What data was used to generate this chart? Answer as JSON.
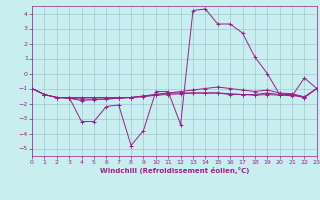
{
  "title": "",
  "xlabel": "Windchill (Refroidissement éolien,°C)",
  "ylabel": "",
  "bg_color": "#c8eef0",
  "line_color": "#9b1f8a",
  "grid_color": "#a0c8d0",
  "xlim": [
    0,
    23
  ],
  "ylim": [
    -5.5,
    4.5
  ],
  "yticks": [
    -5,
    -4,
    -3,
    -2,
    -1,
    0,
    1,
    2,
    3,
    4
  ],
  "xticks": [
    0,
    1,
    2,
    3,
    4,
    5,
    6,
    7,
    8,
    9,
    10,
    11,
    12,
    13,
    14,
    15,
    16,
    17,
    18,
    19,
    20,
    21,
    22,
    23
  ],
  "series": [
    {
      "x": [
        0,
        1,
        2,
        3,
        4,
        5,
        6,
        7,
        8,
        9,
        10,
        11,
        12,
        13,
        14,
        15,
        16,
        17,
        18,
        19,
        20,
        21,
        22,
        23
      ],
      "y": [
        -1,
        -1.4,
        -1.6,
        -1.6,
        -3.2,
        -3.2,
        -2.2,
        -2.1,
        -4.8,
        -3.8,
        -1.2,
        -1.2,
        -3.4,
        4.2,
        4.3,
        3.3,
        3.3,
        2.7,
        1.1,
        -0.0,
        -1.4,
        -1.5,
        -0.3,
        -1.0
      ]
    },
    {
      "x": [
        0,
        1,
        2,
        3,
        4,
        5,
        6,
        7,
        8,
        9,
        10,
        11,
        12,
        13,
        14,
        15,
        16,
        17,
        18,
        19,
        20,
        21,
        22,
        23
      ],
      "y": [
        -1,
        -1.4,
        -1.6,
        -1.6,
        -1.6,
        -1.6,
        -1.6,
        -1.6,
        -1.6,
        -1.5,
        -1.4,
        -1.3,
        -1.3,
        -1.3,
        -1.3,
        -1.3,
        -1.4,
        -1.4,
        -1.4,
        -1.3,
        -1.4,
        -1.4,
        -1.6,
        -1.0
      ]
    },
    {
      "x": [
        0,
        1,
        2,
        3,
        4,
        5,
        6,
        7,
        8,
        9,
        10,
        11,
        12,
        13,
        14,
        15,
        16,
        17,
        18,
        19,
        20,
        21,
        22,
        23
      ],
      "y": [
        -1,
        -1.4,
        -1.6,
        -1.65,
        -1.7,
        -1.7,
        -1.7,
        -1.65,
        -1.6,
        -1.55,
        -1.45,
        -1.4,
        -1.35,
        -1.3,
        -1.3,
        -1.3,
        -1.35,
        -1.4,
        -1.45,
        -1.4,
        -1.45,
        -1.45,
        -1.6,
        -1.0
      ]
    },
    {
      "x": [
        0,
        1,
        2,
        3,
        4,
        5,
        6,
        7,
        8,
        9,
        10,
        11,
        12,
        13,
        14,
        15,
        16,
        17,
        18,
        19,
        20,
        21,
        22,
        23
      ],
      "y": [
        -1,
        -1.4,
        -1.6,
        -1.65,
        -1.8,
        -1.75,
        -1.7,
        -1.65,
        -1.6,
        -1.5,
        -1.4,
        -1.3,
        -1.2,
        -1.1,
        -1.0,
        -0.9,
        -1.0,
        -1.1,
        -1.2,
        -1.1,
        -1.3,
        -1.35,
        -1.55,
        -1.0
      ]
    }
  ]
}
